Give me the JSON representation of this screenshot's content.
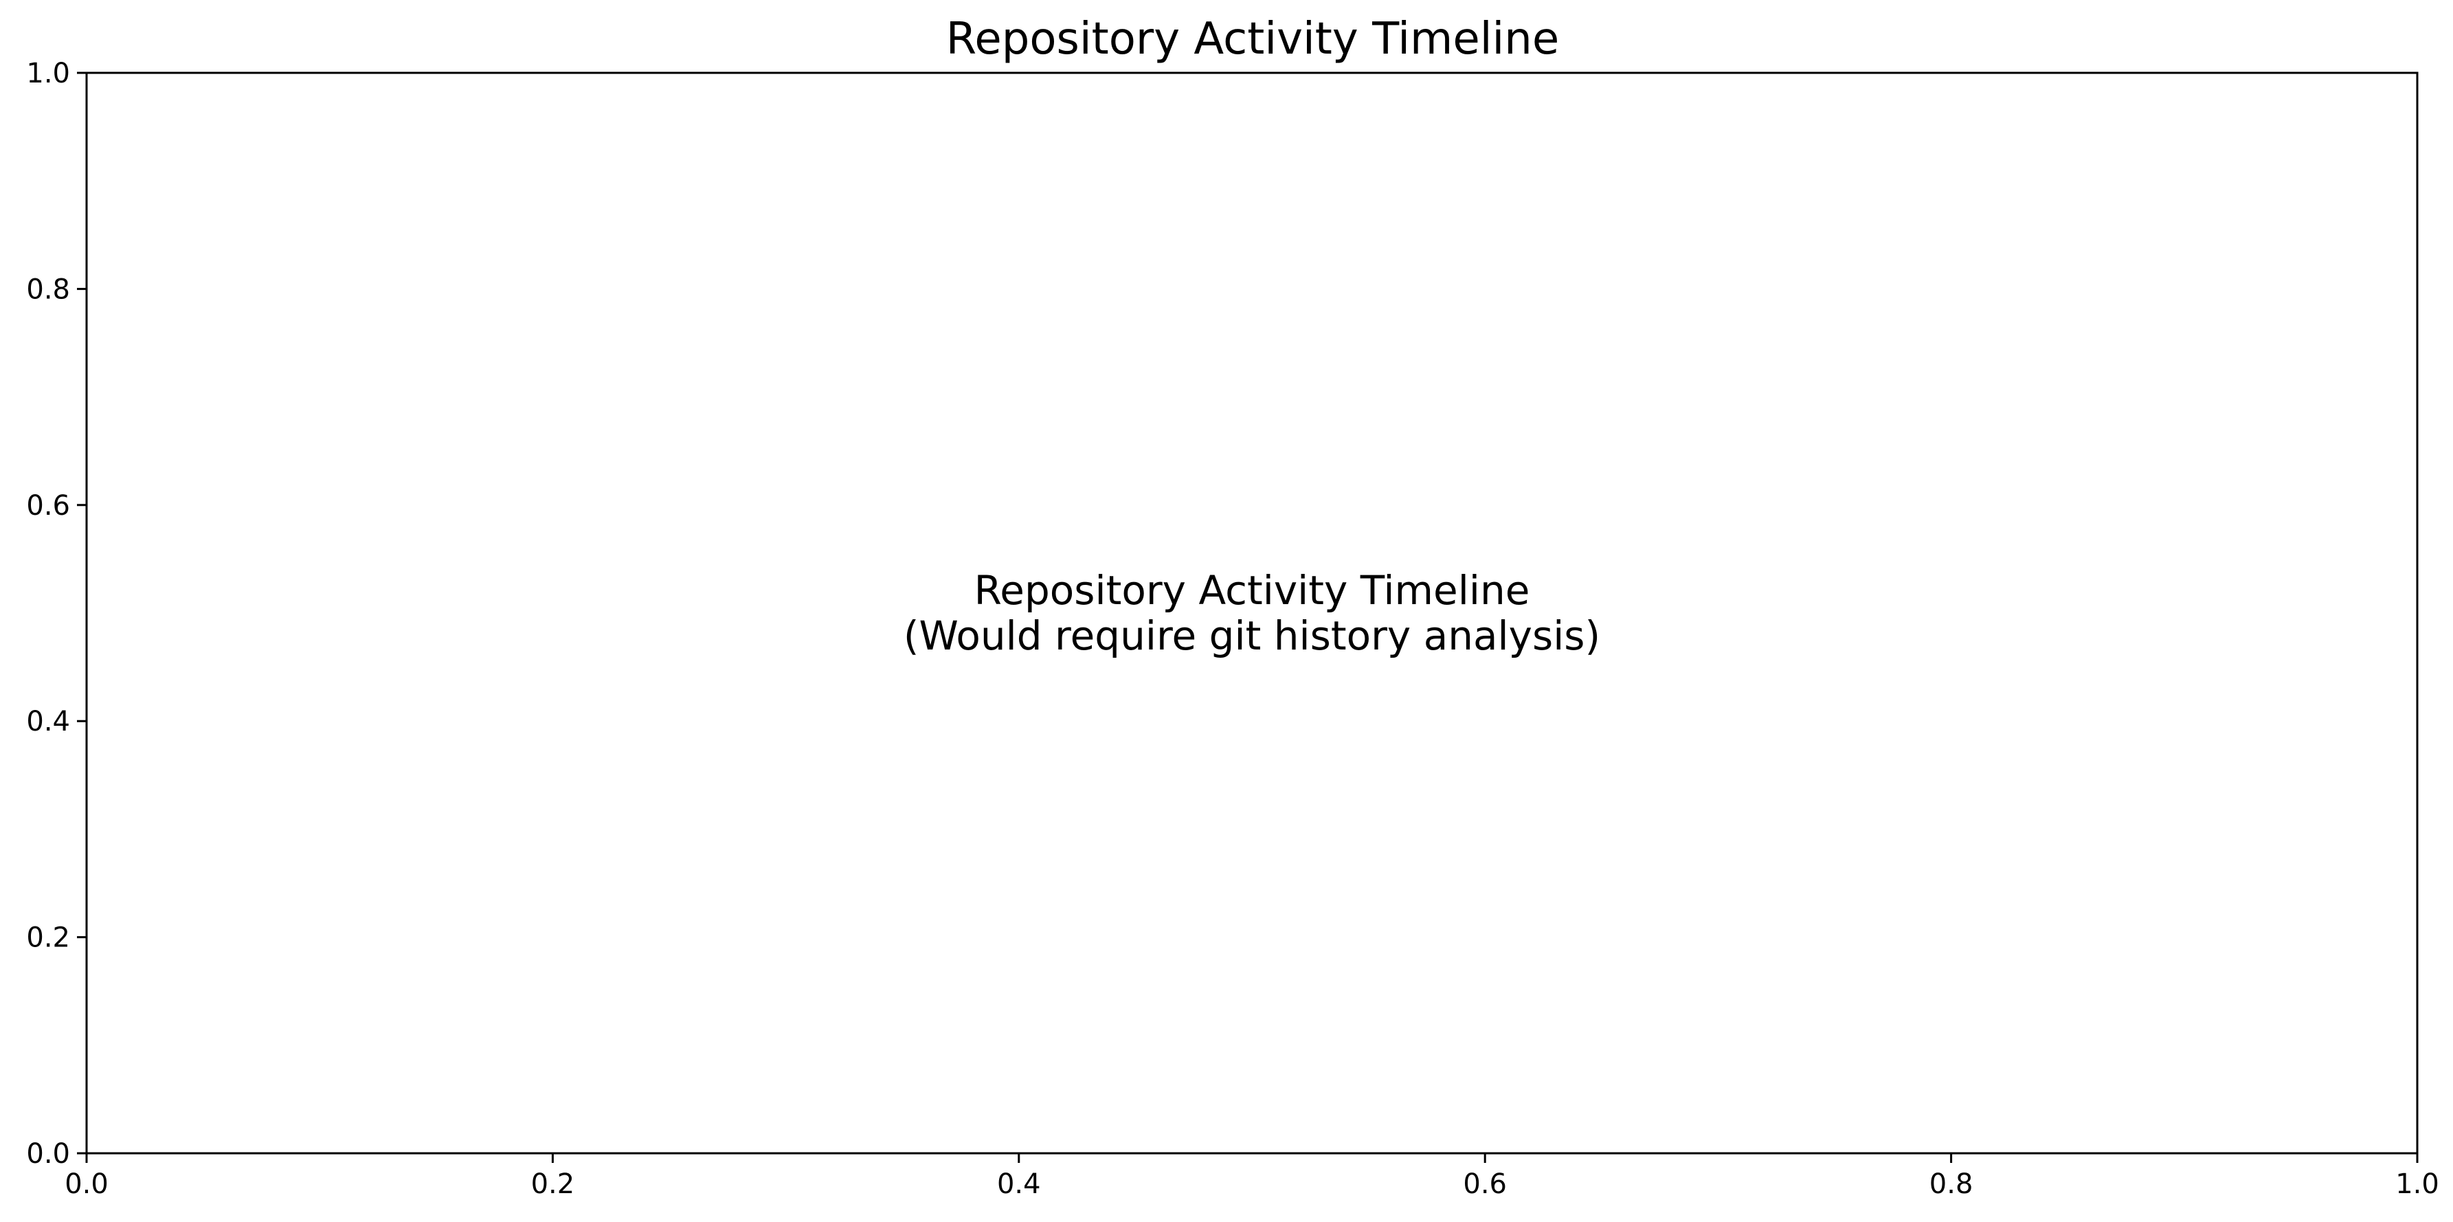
{
  "chart_data": {
    "type": "line",
    "title": "Repository Activity Timeline",
    "xlabel": "",
    "ylabel": "",
    "xlim": [
      0.0,
      1.0
    ],
    "ylim": [
      0.0,
      1.0
    ],
    "x_ticks": [
      "0.0",
      "0.2",
      "0.4",
      "0.6",
      "0.8",
      "1.0"
    ],
    "y_ticks": [
      "0.0",
      "0.2",
      "0.4",
      "0.6",
      "0.8",
      "1.0"
    ],
    "series": [],
    "grid": false,
    "annotation": {
      "lines": [
        "Repository Activity Timeline",
        "(Would require git history analysis)"
      ],
      "x": 0.5,
      "y": 0.5
    },
    "colors": {
      "axis": "#000000",
      "background": "#ffffff",
      "text": "#000000"
    }
  }
}
